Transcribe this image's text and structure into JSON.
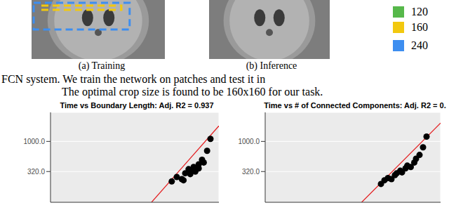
{
  "figure": {
    "legend": [
      {
        "label": "120",
        "color": "#56b84a"
      },
      {
        "label": "160",
        "color": "#f2c80f"
      },
      {
        "label": "240",
        "color": "#3d8ef0"
      }
    ],
    "subcaptions": [
      "(a) Training",
      "(b) Inference"
    ]
  },
  "caption": [
    "FCN system. We train the network on patches and test it in",
    "The optimal crop size is found to be 160x160 for our task."
  ],
  "chart_data": [
    {
      "type": "scatter",
      "title": "Time vs Boundary Length: Adj. R2 = 0.937",
      "x": [
        72,
        75,
        78,
        79,
        80,
        82,
        83,
        84,
        85,
        86,
        88,
        88,
        90,
        91,
        93,
        95
      ],
      "values": [
        220,
        260,
        240,
        230,
        300,
        350,
        290,
        330,
        380,
        320,
        420,
        360,
        500,
        450,
        700,
        1100
      ],
      "color": "#000000",
      "fit": {
        "x": [
          60,
          100
        ],
        "values": [
          100,
          1800
        ],
        "color": "#e41a1c"
      },
      "xlim": [
        0,
        100
      ],
      "xticks": [
        25,
        50,
        75
      ],
      "ylim": [
        100,
        3000
      ],
      "yticks": [
        {
          "value": 320,
          "label": "320.0"
        },
        {
          "value": 1000,
          "label": "1000.0"
        }
      ],
      "log": "y",
      "grid": true,
      "tick_labels": "y"
    },
    {
      "type": "scatter",
      "title": "Time vs # of Connected Components: Adj. R2 = 0.",
      "x": [
        66,
        68,
        70,
        72,
        74,
        75,
        77,
        78,
        80,
        81,
        83,
        85,
        86,
        88,
        90,
        92
      ],
      "values": [
        200,
        230,
        250,
        240,
        280,
        300,
        330,
        310,
        360,
        400,
        380,
        450,
        520,
        600,
        800,
        1200
      ],
      "color": "#000000",
      "fit": {
        "x": [
          55,
          100
        ],
        "values": [
          100,
          2000
        ],
        "color": "#e41a1c"
      },
      "xlim": [
        0,
        100
      ],
      "xticks": [
        25,
        50,
        75
      ],
      "ylim": [
        100,
        3000
      ],
      "yticks": [
        {
          "value": 320,
          "label": "320.0"
        },
        {
          "value": 1000,
          "label": "1000.0"
        }
      ],
      "log": "y",
      "grid": true,
      "tick_labels": "y"
    }
  ]
}
